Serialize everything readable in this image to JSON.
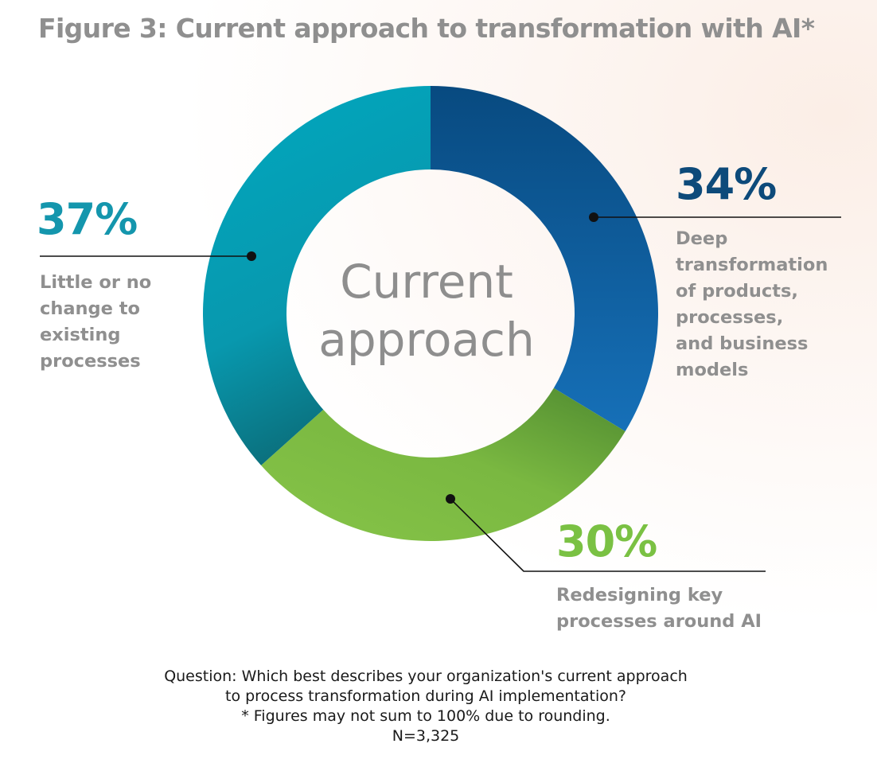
{
  "chart_data": {
    "type": "pie",
    "title": "Figure 3: Current approach to transformation with AI*",
    "center_label": [
      "Current",
      "approach"
    ],
    "categories": [
      "Deep transformation of products, processes, and business models",
      "Redesigning key processes around AI",
      "Little or no change to existing processes"
    ],
    "values": [
      34,
      30,
      37
    ],
    "value_labels": [
      "34%",
      "30%",
      "37%"
    ],
    "label_lines": [
      [
        "Deep",
        "transformation",
        "of products,",
        "processes,",
        "and business",
        "models"
      ],
      [
        "Redesigning key",
        "processes around AI"
      ],
      [
        "Little or no",
        "change to",
        "existing",
        "processes"
      ]
    ],
    "colors": [
      "#0f5b99",
      "#78b843",
      "#0f9fb5"
    ],
    "label_colors": [
      "#0d4a7a",
      "#7ac143",
      "#1496ad"
    ]
  },
  "footnote": {
    "question_line1": "Question: Which best describes your organization's current approach",
    "question_line2": "to process transformation during AI implementation?",
    "rounding_note": "* Figures may not sum to 100% due to rounding.",
    "sample_size": "N=3,325"
  }
}
